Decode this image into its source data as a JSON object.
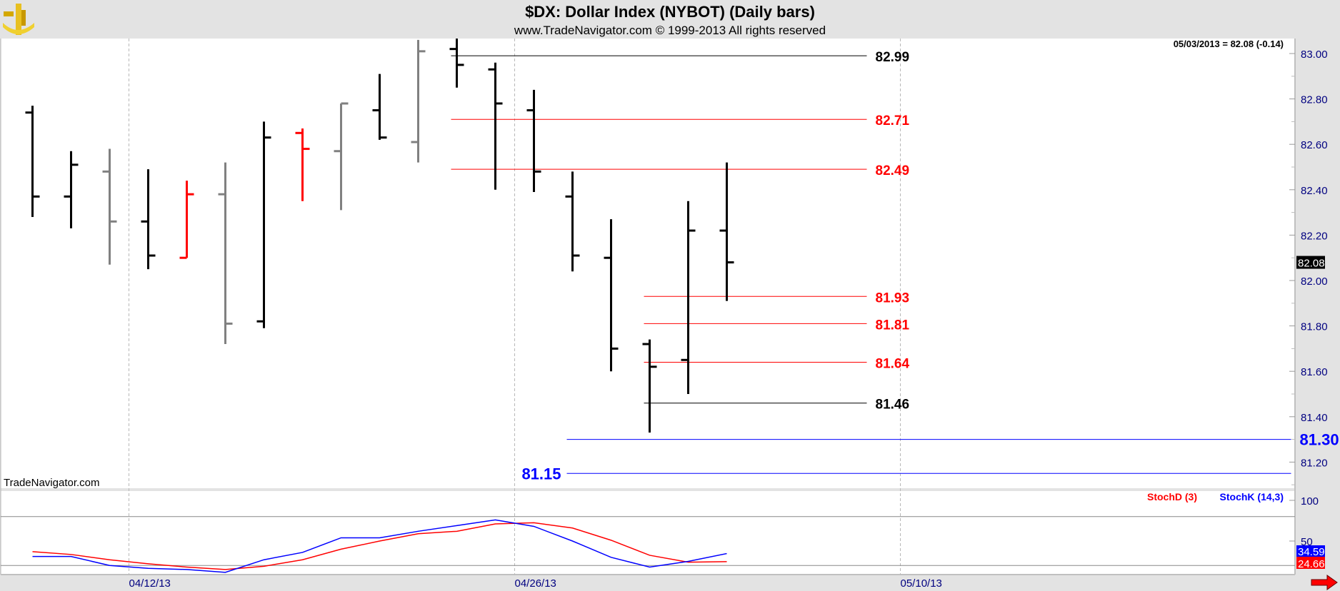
{
  "header": {
    "title": "$DX:  Dollar Index (NYBOT)  (Daily bars)",
    "subtitle": "www.TradeNavigator.com © 1999-2013 All rights reserved",
    "logo_icon": "sextant-logo-icon"
  },
  "watermark": "TradeNavigator.com",
  "readout": "05/03/2013 = 82.08 (-0.14)",
  "colors": {
    "up": "#000000",
    "down_gray": "#808080",
    "red": "#ff0000",
    "blue": "#0000ff",
    "axis_text": "#000080",
    "background": "#ffffff",
    "frame": "#e3e3e3"
  },
  "chart_data": [
    {
      "type": "ohlc",
      "title": "$DX:  Dollar Index (NYBOT)  (Daily bars)",
      "ylim": [
        81.07,
        83.07
      ],
      "yticks": [
        "83.00",
        "82.80",
        "82.60",
        "82.40",
        "82.20",
        "82.00",
        "81.80",
        "81.60",
        "81.40",
        "81.20"
      ],
      "last_price_label": "82.08",
      "x_tick_labels": [
        "04/12/13",
        "04/26/13",
        "05/10/13"
      ],
      "bars": [
        {
          "date": "04/09/13",
          "o": 82.74,
          "h": 82.77,
          "l": 82.28,
          "c": 82.37,
          "color": "#000000"
        },
        {
          "date": "04/10/13",
          "o": 82.37,
          "h": 82.57,
          "l": 82.23,
          "c": 82.51,
          "color": "#000000"
        },
        {
          "date": "04/11/13",
          "o": 82.48,
          "h": 82.58,
          "l": 82.07,
          "c": 82.26,
          "color": "#808080"
        },
        {
          "date": "04/12/13",
          "o": 82.26,
          "h": 82.49,
          "l": 82.05,
          "c": 82.11,
          "color": "#000000"
        },
        {
          "date": "04/15/13",
          "o": 82.1,
          "h": 82.44,
          "l": 82.1,
          "c": 82.38,
          "color": "#ff0000"
        },
        {
          "date": "04/16/13",
          "o": 82.38,
          "h": 82.52,
          "l": 81.72,
          "c": 81.81,
          "color": "#808080"
        },
        {
          "date": "04/17/13",
          "o": 81.82,
          "h": 82.7,
          "l": 81.79,
          "c": 82.63,
          "color": "#000000"
        },
        {
          "date": "04/18/13",
          "o": 82.65,
          "h": 82.67,
          "l": 82.35,
          "c": 82.58,
          "color": "#ff0000"
        },
        {
          "date": "04/19/13",
          "o": 82.57,
          "h": 82.78,
          "l": 82.31,
          "c": 82.78,
          "color": "#808080"
        },
        {
          "date": "04/22/13",
          "o": 82.75,
          "h": 82.91,
          "l": 82.62,
          "c": 82.63,
          "color": "#000000"
        },
        {
          "date": "04/23/13",
          "o": 82.61,
          "h": 83.06,
          "l": 82.52,
          "c": 83.01,
          "color": "#808080"
        },
        {
          "date": "04/24/13",
          "o": 83.02,
          "h": 83.08,
          "l": 82.85,
          "c": 82.95,
          "color": "#000000"
        },
        {
          "date": "04/25/13",
          "o": 82.93,
          "h": 82.96,
          "l": 82.4,
          "c": 82.78,
          "color": "#000000"
        },
        {
          "date": "04/26/13",
          "o": 82.75,
          "h": 82.84,
          "l": 82.39,
          "c": 82.48,
          "color": "#000000"
        },
        {
          "date": "04/29/13",
          "o": 82.37,
          "h": 82.48,
          "l": 82.04,
          "c": 82.11,
          "color": "#000000"
        },
        {
          "date": "04/30/13",
          "o": 82.1,
          "h": 82.27,
          "l": 81.6,
          "c": 81.7,
          "color": "#000000"
        },
        {
          "date": "05/01/13",
          "o": 81.72,
          "h": 81.74,
          "l": 81.33,
          "c": 81.62,
          "color": "#000000"
        },
        {
          "date": "05/02/13",
          "o": 81.65,
          "h": 82.35,
          "l": 81.5,
          "c": 82.22,
          "color": "#000000"
        },
        {
          "date": "05/03/13",
          "o": 82.22,
          "h": 82.52,
          "l": 81.91,
          "c": 82.08,
          "color": "#000000"
        }
      ],
      "levels": [
        {
          "label": "82.99",
          "value": 82.99,
          "color": "#000000",
          "from": "04/24/13",
          "to_date": "05/09/13"
        },
        {
          "label": "82.71",
          "value": 82.71,
          "color": "#ff0000",
          "from": "04/24/13",
          "to_date": "05/09/13"
        },
        {
          "label": "82.49",
          "value": 82.49,
          "color": "#ff0000",
          "from": "04/24/13",
          "to_date": "05/09/13"
        },
        {
          "label": "81.93",
          "value": 81.93,
          "color": "#ff0000",
          "from": "05/01/13",
          "to_date": "05/09/13"
        },
        {
          "label": "81.81",
          "value": 81.81,
          "color": "#ff0000",
          "from": "05/01/13",
          "to_date": "05/09/13"
        },
        {
          "label": "81.64",
          "value": 81.64,
          "color": "#ff0000",
          "from": "05/01/13",
          "to_date": "05/09/13"
        },
        {
          "label": "81.46",
          "value": 81.46,
          "color": "#000000",
          "from": "05/01/13",
          "to_date": "05/09/13"
        },
        {
          "label": "81.30",
          "value": 81.3,
          "color": "#0000ff",
          "from": "04/29/13",
          "to_date": "05/24/13",
          "label_side": "right"
        },
        {
          "label": "81.15",
          "value": 81.15,
          "color": "#0000ff",
          "from": "04/29/13",
          "to_date": "05/24/13",
          "label_side": "left"
        }
      ]
    },
    {
      "type": "line",
      "ylim": [
        0,
        100
      ],
      "yticks": [
        "100",
        "50"
      ],
      "reference_lines": [
        80,
        20
      ],
      "series": [
        {
          "name": "StochD (3)",
          "color": "#ff0000",
          "last_label": "24.66",
          "values": [
            37,
            33.5,
            27,
            22,
            18,
            15,
            19,
            27,
            40,
            50,
            59,
            62,
            71,
            72.5,
            66,
            51,
            32.5,
            24,
            24.66
          ]
        },
        {
          "name": "StochK (14,3)",
          "color": "#0000ff",
          "last_label": "34.59",
          "values": [
            31,
            31,
            20,
            16.5,
            15,
            11.5,
            27,
            36,
            54,
            54,
            62,
            69,
            76,
            68,
            50,
            30,
            18,
            25,
            34.59
          ]
        }
      ]
    }
  ],
  "scroll_right_icon": "red-arrow-right-icon"
}
